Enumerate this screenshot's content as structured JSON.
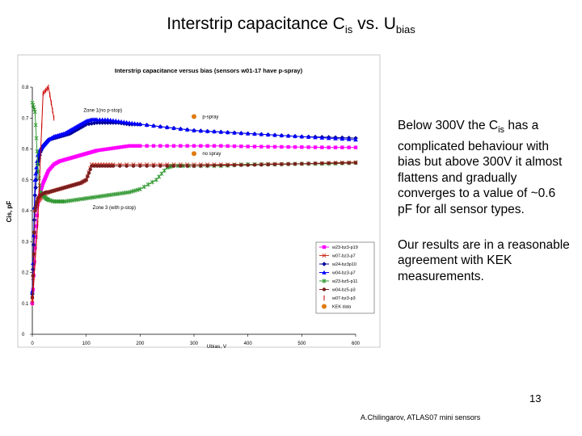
{
  "slide": {
    "title_main": "Interstrip capacitance C",
    "title_sub1": "is",
    "title_mid": " vs. U",
    "title_sub2": "bias",
    "page_number": "13",
    "footer": "A.Chilingarov, ATLAS07 mini sensors"
  },
  "notes": {
    "p1_a": "Below 300V the C",
    "p1_sub": "is",
    "p1_b": " has a complicated behaviour with bias but above 300V it almost flattens and gradually converges to a value of ~0.6 pF for all sensor types.",
    "p2": "Our results are in a reasonable agreement with KEK measurements."
  },
  "chart_data": {
    "type": "scatter",
    "title": "Interstrip capacitance versus bias (sensors w01-17 have p-spray)",
    "xlabel": "Ubias, V",
    "ylabel": "Cis, pF",
    "xlim": [
      0,
      600
    ],
    "ylim": [
      0,
      0.8
    ],
    "xticks": [
      0,
      100,
      200,
      300,
      400,
      500,
      600
    ],
    "yticks": [
      0,
      0.1,
      0.2,
      0.3,
      0.4,
      0.5,
      0.6,
      0.7,
      0.8
    ],
    "annotations": [
      {
        "text": "Zone 1(no p-stop)",
        "x": 95,
        "y": 0.72
      },
      {
        "text": "Zone 3 (with p-stop)",
        "x": 112,
        "y": 0.405
      },
      {
        "text": "p-spray",
        "x": 305,
        "y": 0.705
      },
      {
        "text": "no spray",
        "x": 305,
        "y": 0.585
      }
    ],
    "series": [
      {
        "name": "w23-bz3-p19",
        "color": "#ff00ff",
        "marker": "square",
        "x": [
          0,
          5,
          10,
          15,
          20,
          25,
          30,
          40,
          50,
          60,
          70,
          80,
          90,
          100,
          110,
          120,
          140,
          160,
          180,
          200,
          250,
          300,
          350,
          400,
          450,
          500,
          550,
          600
        ],
        "y": [
          0.1,
          0.28,
          0.42,
          0.46,
          0.49,
          0.51,
          0.53,
          0.55,
          0.56,
          0.565,
          0.57,
          0.575,
          0.58,
          0.585,
          0.59,
          0.595,
          0.6,
          0.605,
          0.61,
          0.61,
          0.61,
          0.61,
          0.61,
          0.608,
          0.607,
          0.606,
          0.605,
          0.605
        ]
      },
      {
        "name": "w07-bz3-p7",
        "color": "#cc3322",
        "marker": "x",
        "x": [
          0,
          5,
          10,
          15,
          20,
          30,
          40,
          50,
          60,
          70,
          80,
          90,
          100,
          110,
          130,
          150,
          200,
          250,
          300,
          350,
          400,
          450,
          500,
          550,
          600
        ],
        "y": [
          0.11,
          0.4,
          0.43,
          0.44,
          0.45,
          0.46,
          0.465,
          0.47,
          0.475,
          0.48,
          0.485,
          0.49,
          0.5,
          0.55,
          0.55,
          0.55,
          0.55,
          0.55,
          0.55,
          0.55,
          0.55,
          0.552,
          0.552,
          0.555,
          0.557
        ]
      },
      {
        "name": "w24-bz3p10",
        "color": "#000099",
        "marker": "diamond",
        "x": [
          0,
          5,
          10,
          15,
          20,
          25,
          30,
          40,
          50,
          60,
          70,
          80,
          90,
          100,
          120,
          140,
          160,
          180,
          200,
          250,
          300,
          350,
          400,
          450,
          500,
          550,
          600
        ],
        "y": [
          0.13,
          0.45,
          0.55,
          0.59,
          0.61,
          0.62,
          0.63,
          0.635,
          0.64,
          0.645,
          0.65,
          0.66,
          0.67,
          0.68,
          0.685,
          0.685,
          0.685,
          0.68,
          0.68,
          0.67,
          0.66,
          0.655,
          0.65,
          0.645,
          0.64,
          0.638,
          0.635
        ]
      },
      {
        "name": "w04-bz3-p7",
        "color": "#0000ff",
        "marker": "triangle",
        "x": [
          0,
          5,
          10,
          15,
          20,
          25,
          30,
          40,
          50,
          60,
          70,
          80,
          90,
          100,
          110,
          120,
          140,
          160,
          180,
          200,
          250,
          300,
          350,
          400,
          450,
          500,
          550,
          600
        ],
        "y": [
          0.14,
          0.5,
          0.58,
          0.6,
          0.61,
          0.62,
          0.63,
          0.64,
          0.645,
          0.65,
          0.66,
          0.67,
          0.68,
          0.69,
          0.695,
          0.695,
          0.695,
          0.69,
          0.685,
          0.68,
          0.67,
          0.66,
          0.655,
          0.65,
          0.645,
          0.64,
          0.635,
          0.63
        ]
      },
      {
        "name": "w23-bz5-p11",
        "color": "#339933",
        "marker": "star",
        "x": [
          0,
          5,
          10,
          15,
          20,
          25,
          30,
          40,
          50,
          60,
          80,
          100,
          120,
          140,
          160,
          180,
          200,
          230,
          250,
          260,
          300,
          350,
          400,
          450,
          500,
          550,
          600
        ],
        "y": [
          0.75,
          0.72,
          0.55,
          0.46,
          0.45,
          0.44,
          0.435,
          0.43,
          0.43,
          0.43,
          0.435,
          0.44,
          0.445,
          0.45,
          0.455,
          0.46,
          0.47,
          0.5,
          0.54,
          0.545,
          0.545,
          0.545,
          0.55,
          0.55,
          0.552,
          0.552,
          0.555
        ]
      },
      {
        "name": "w04-bz5-p3",
        "color": "#7a1f1f",
        "marker": "circle",
        "x": [
          0,
          5,
          10,
          15,
          20,
          25,
          30,
          40,
          50,
          60,
          70,
          80,
          90,
          100,
          110,
          130,
          150,
          200,
          250,
          300,
          350,
          400,
          450,
          500,
          550,
          600
        ],
        "y": [
          0.12,
          0.4,
          0.44,
          0.45,
          0.455,
          0.46,
          0.46,
          0.465,
          0.47,
          0.475,
          0.48,
          0.485,
          0.49,
          0.5,
          0.545,
          0.545,
          0.545,
          0.545,
          0.545,
          0.545,
          0.547,
          0.548,
          0.55,
          0.552,
          0.554,
          0.555
        ]
      },
      {
        "name": "w07-bz3-p3",
        "color": "#cc0000",
        "marker": "vline",
        "x": [
          0,
          10,
          20,
          30,
          40
        ],
        "y": [
          0.1,
          0.36,
          0.78,
          0.8,
          0.7
        ]
      },
      {
        "name": "KEK data",
        "color": "#e07a10",
        "marker": "bigcircle",
        "x": [
          300,
          300
        ],
        "y": [
          0.705,
          0.585
        ]
      }
    ]
  }
}
